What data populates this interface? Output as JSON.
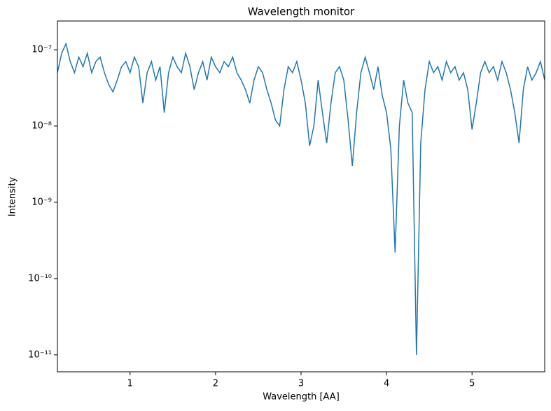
{
  "chart_data": {
    "type": "line",
    "title": "Wavelength monitor",
    "xlabel": "Wavelength [AA]",
    "ylabel": "Intensity",
    "yscale": "log",
    "grid": false,
    "xlim": [
      0.15,
      5.85
    ],
    "ylim": [
      6e-12,
      2.38e-07
    ],
    "xticks": [
      1,
      2,
      3,
      4,
      5
    ],
    "yticks": [
      {
        "value": 1e-11,
        "label": "10⁻¹¹"
      },
      {
        "value": 1e-10,
        "label": "10⁻¹⁰"
      },
      {
        "value": 1e-09,
        "label": "10⁻⁹"
      },
      {
        "value": 1e-08,
        "label": "10⁻⁸"
      },
      {
        "value": 1e-07,
        "label": "10⁻⁷"
      }
    ],
    "x": [
      0.15,
      0.2,
      0.25,
      0.3,
      0.35,
      0.4,
      0.45,
      0.5,
      0.55,
      0.6,
      0.65,
      0.7,
      0.75,
      0.8,
      0.85,
      0.9,
      0.95,
      1.0,
      1.05,
      1.1,
      1.15,
      1.2,
      1.25,
      1.3,
      1.35,
      1.4,
      1.45,
      1.5,
      1.55,
      1.6,
      1.65,
      1.7,
      1.75,
      1.8,
      1.85,
      1.9,
      1.95,
      2.0,
      2.05,
      2.1,
      2.15,
      2.2,
      2.25,
      2.3,
      2.35,
      2.4,
      2.45,
      2.5,
      2.55,
      2.6,
      2.65,
      2.7,
      2.75,
      2.8,
      2.85,
      2.9,
      2.95,
      3.0,
      3.05,
      3.1,
      3.15,
      3.2,
      3.25,
      3.3,
      3.35,
      3.4,
      3.45,
      3.5,
      3.55,
      3.6,
      3.65,
      3.7,
      3.75,
      3.8,
      3.85,
      3.9,
      3.95,
      4.0,
      4.05,
      4.1,
      4.15,
      4.2,
      4.25,
      4.3,
      4.35,
      4.4,
      4.45,
      4.5,
      4.55,
      4.6,
      4.65,
      4.7,
      4.75,
      4.8,
      4.85,
      4.9,
      4.95,
      5.0,
      5.05,
      5.1,
      5.15,
      5.2,
      5.25,
      5.3,
      5.35,
      5.4,
      5.45,
      5.5,
      5.55,
      5.6,
      5.65,
      5.7,
      5.75,
      5.8,
      5.85
    ],
    "series": [
      {
        "name": "Intensity",
        "color": "#1f77b4",
        "values": [
          5e-08,
          9e-08,
          1.2e-07,
          7e-08,
          5e-08,
          8e-08,
          6e-08,
          9e-08,
          5e-08,
          7e-08,
          8e-08,
          5e-08,
          3.5e-08,
          2.8e-08,
          4e-08,
          6e-08,
          7e-08,
          5e-08,
          8e-08,
          6e-08,
          2e-08,
          5e-08,
          7e-08,
          4e-08,
          6e-08,
          1.5e-08,
          5e-08,
          8e-08,
          6e-08,
          5e-08,
          9e-08,
          6e-08,
          3e-08,
          5e-08,
          7e-08,
          4e-08,
          8e-08,
          6e-08,
          5e-08,
          7e-08,
          6e-08,
          8e-08,
          5e-08,
          4e-08,
          3e-08,
          2e-08,
          4e-08,
          6e-08,
          5e-08,
          3e-08,
          2e-08,
          1.2e-08,
          1e-08,
          3e-08,
          6e-08,
          5e-08,
          7e-08,
          4e-08,
          2e-08,
          5.5e-09,
          1e-08,
          4e-08,
          1.5e-08,
          6e-09,
          2e-08,
          5e-08,
          6e-08,
          4e-08,
          1.2e-08,
          3e-09,
          1.5e-08,
          5e-08,
          8e-08,
          5e-08,
          3e-08,
          6e-08,
          2.5e-08,
          1.5e-08,
          5e-09,
          2.2e-10,
          1e-08,
          4e-08,
          2e-08,
          1.5e-08,
          1e-11,
          6e-09,
          3e-08,
          7e-08,
          5e-08,
          6e-08,
          4e-08,
          7e-08,
          5e-08,
          6e-08,
          4e-08,
          5e-08,
          3e-08,
          9e-09,
          2e-08,
          5e-08,
          7e-08,
          5e-08,
          6e-08,
          4e-08,
          7e-08,
          5e-08,
          3e-08,
          1.5e-08,
          6e-09,
          3e-08,
          6e-08,
          4e-08,
          5e-08,
          7e-08,
          4e-08
        ]
      }
    ]
  }
}
